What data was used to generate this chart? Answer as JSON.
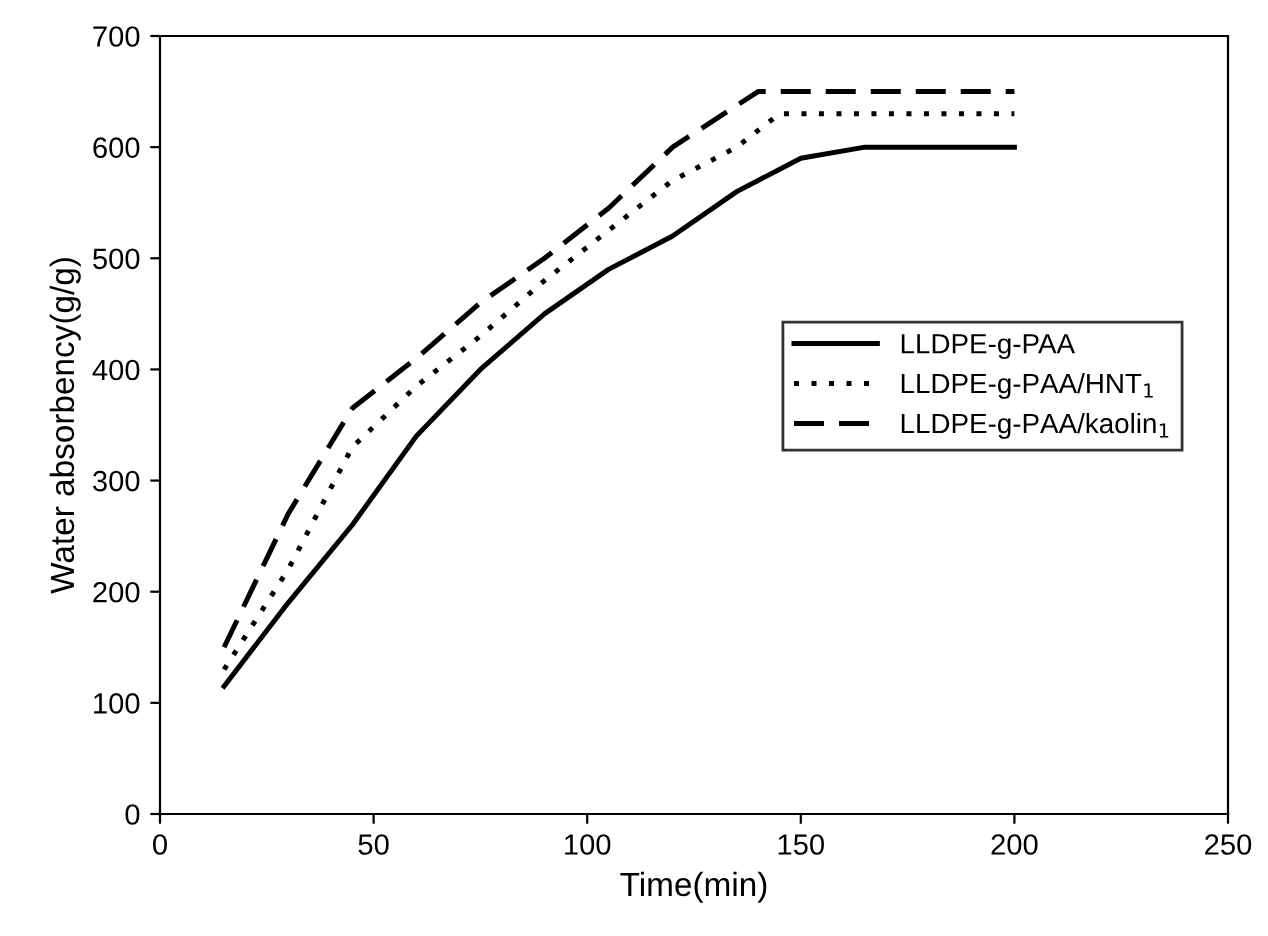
{
  "chart_data": {
    "type": "line",
    "xlabel": "Time(min)",
    "ylabel": "Water absorbency(g/g)",
    "xlim": [
      0,
      250
    ],
    "ylim": [
      0,
      700
    ],
    "xticks": [
      0,
      50,
      100,
      150,
      200,
      250
    ],
    "yticks": [
      0,
      100,
      200,
      300,
      400,
      500,
      600,
      700
    ],
    "grid": false,
    "legend": "right",
    "marker": "none",
    "series": [
      {
        "name": "LLDPE-g-PAA",
        "color": "#000000",
        "line_style": "solid",
        "x": [
          15,
          30,
          45,
          60,
          75,
          90,
          105,
          120,
          135,
          150,
          165,
          200
        ],
        "values": [
          115,
          190,
          260,
          340,
          400,
          450,
          490,
          520,
          560,
          590,
          600,
          600
        ]
      },
      {
        "name": "LLDPE-g-PAA/HNT$_{1}$",
        "color": "#000000",
        "line_style": "dotted",
        "x": [
          15,
          30,
          45,
          60,
          75,
          90,
          105,
          120,
          135,
          145,
          200
        ],
        "values": [
          130,
          220,
          330,
          385,
          430,
          480,
          525,
          570,
          600,
          630,
          630
        ]
      },
      {
        "name": "LLDPE-g-PAA/kaolin$_{1}$",
        "color": "#000000",
        "line_style": "dashed",
        "x": [
          15,
          30,
          45,
          60,
          75,
          90,
          105,
          120,
          140,
          200
        ],
        "values": [
          150,
          270,
          365,
          410,
          460,
          500,
          545,
          600,
          650,
          650
        ]
      }
    ]
  }
}
